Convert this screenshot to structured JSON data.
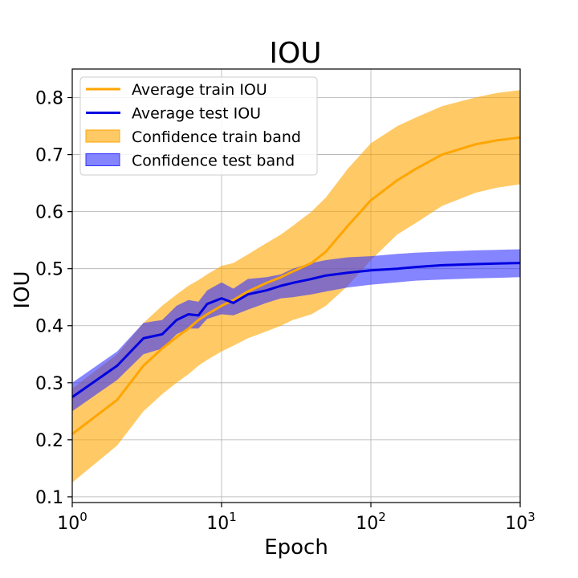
{
  "chart_data": {
    "type": "line",
    "title": "IOU",
    "xlabel": "Epoch",
    "ylabel": "IOU",
    "xscale": "log",
    "xlim": [
      1,
      1000
    ],
    "ylim": [
      0.09,
      0.85
    ],
    "grid": true,
    "legend_position": "top-left",
    "x_ticks": [
      {
        "value": 1,
        "base": "10",
        "exp": "0"
      },
      {
        "value": 10,
        "base": "10",
        "exp": "1"
      },
      {
        "value": 100,
        "base": "10",
        "exp": "2"
      },
      {
        "value": 1000,
        "base": "10",
        "exp": "3"
      }
    ],
    "y_ticks": [
      {
        "value": 0.1,
        "label": "0.1"
      },
      {
        "value": 0.2,
        "label": "0.2"
      },
      {
        "value": 0.3,
        "label": "0.3"
      },
      {
        "value": 0.4,
        "label": "0.4"
      },
      {
        "value": 0.5,
        "label": "0.5"
      },
      {
        "value": 0.6,
        "label": "0.6"
      },
      {
        "value": 0.7,
        "label": "0.7"
      },
      {
        "value": 0.8,
        "label": "0.8"
      }
    ],
    "series": [
      {
        "name": "Average train IOU",
        "kind": "line",
        "color": "#FFA500",
        "x": [
          1,
          2,
          3,
          4,
          5,
          6,
          7,
          8,
          10,
          12,
          15,
          20,
          25,
          30,
          40,
          50,
          70,
          100,
          150,
          200,
          300,
          500,
          700,
          1000
        ],
        "y": [
          0.21,
          0.27,
          0.33,
          0.36,
          0.38,
          0.395,
          0.41,
          0.42,
          0.435,
          0.445,
          0.46,
          0.475,
          0.485,
          0.495,
          0.51,
          0.53,
          0.575,
          0.62,
          0.655,
          0.675,
          0.7,
          0.718,
          0.725,
          0.73
        ]
      },
      {
        "name": "Average test IOU",
        "kind": "line",
        "color": "#0000E0",
        "x": [
          1,
          2,
          3,
          4,
          5,
          6,
          7,
          8,
          10,
          12,
          15,
          20,
          25,
          30,
          40,
          50,
          70,
          100,
          150,
          200,
          300,
          500,
          700,
          1000
        ],
        "y": [
          0.275,
          0.33,
          0.378,
          0.385,
          0.41,
          0.42,
          0.418,
          0.438,
          0.448,
          0.44,
          0.455,
          0.462,
          0.47,
          0.475,
          0.482,
          0.488,
          0.493,
          0.497,
          0.5,
          0.503,
          0.506,
          0.508,
          0.509,
          0.51
        ]
      },
      {
        "name": "Confidence train band",
        "kind": "band",
        "color": "#FFA500",
        "x": [
          1,
          2,
          3,
          4,
          5,
          6,
          7,
          8,
          10,
          12,
          15,
          20,
          25,
          30,
          40,
          50,
          70,
          100,
          150,
          200,
          300,
          500,
          700,
          1000
        ],
        "lower": [
          0.125,
          0.19,
          0.25,
          0.28,
          0.3,
          0.315,
          0.33,
          0.34,
          0.355,
          0.365,
          0.378,
          0.39,
          0.4,
          0.41,
          0.42,
          0.435,
          0.47,
          0.515,
          0.56,
          0.58,
          0.61,
          0.633,
          0.642,
          0.648
        ],
        "upper": [
          0.29,
          0.35,
          0.405,
          0.435,
          0.455,
          0.47,
          0.48,
          0.49,
          0.505,
          0.51,
          0.525,
          0.545,
          0.56,
          0.575,
          0.6,
          0.625,
          0.675,
          0.72,
          0.75,
          0.765,
          0.785,
          0.8,
          0.808,
          0.813
        ]
      },
      {
        "name": "Confidence test band",
        "kind": "band",
        "color": "#3333FF",
        "x": [
          1,
          2,
          3,
          4,
          5,
          6,
          7,
          8,
          10,
          12,
          15,
          20,
          25,
          30,
          40,
          50,
          70,
          100,
          150,
          200,
          300,
          500,
          700,
          1000
        ],
        "lower": [
          0.25,
          0.305,
          0.35,
          0.36,
          0.385,
          0.395,
          0.395,
          0.412,
          0.42,
          0.418,
          0.428,
          0.44,
          0.448,
          0.45,
          0.455,
          0.46,
          0.467,
          0.472,
          0.476,
          0.479,
          0.481,
          0.483,
          0.484,
          0.485
        ],
        "upper": [
          0.3,
          0.355,
          0.405,
          0.41,
          0.435,
          0.445,
          0.442,
          0.462,
          0.476,
          0.465,
          0.482,
          0.485,
          0.49,
          0.5,
          0.51,
          0.515,
          0.52,
          0.522,
          0.526,
          0.528,
          0.53,
          0.532,
          0.533,
          0.534
        ]
      }
    ]
  }
}
